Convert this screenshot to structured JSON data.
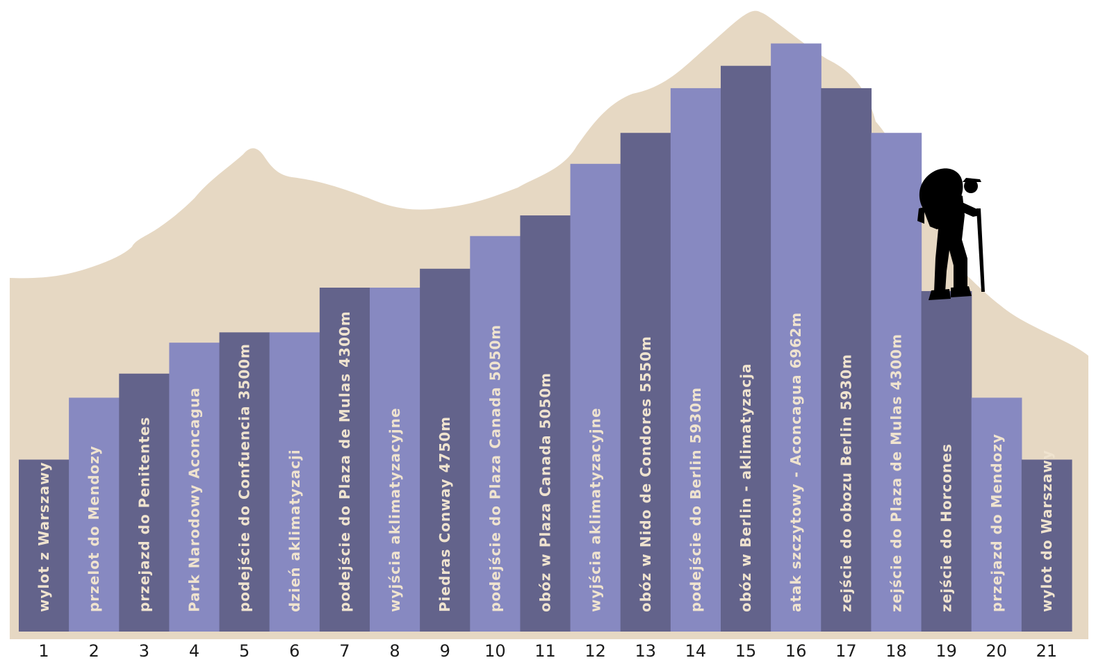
{
  "chart_data": {
    "type": "bar",
    "categories": [
      "1",
      "2",
      "3",
      "4",
      "5",
      "6",
      "7",
      "8",
      "9",
      "10",
      "11",
      "12",
      "13",
      "14",
      "15",
      "16",
      "17",
      "18",
      "19",
      "20",
      "21"
    ],
    "labels": [
      "wylot z Warszawy",
      "przelot do Mendozy",
      "przejazd do Penitentes",
      "Park Narodowy Aconcagua",
      "podejście do Confuencia 3500m",
      "dzień aklimatyzacji",
      "podejście do Plaza de Mulas 4300m",
      "wyjścia aklimatyzacyjne",
      "Piedras Conway 4750m",
      "podejście do Plaza Canada 5050m",
      "obóz w Plaza Canada 5050m",
      "wyjścia aklimatyzacyjne",
      "obóz w Nido de Condores 5550m",
      "podejście do Berlin 5930m",
      "obóz w Berlin - aklimatyzacja",
      "atak szczytowy - Aconcagua 6962m",
      "zejście do obozu Berlin 5930m",
      "zejście do Plaza de Mulas 4300m",
      "zejście do Horcones",
      "przejazd do Mendozy",
      "wylot do Warszawy"
    ],
    "values": [
      1.0,
      1.36,
      1.5,
      1.68,
      1.74,
      1.74,
      2.0,
      2.0,
      2.11,
      2.3,
      2.42,
      2.72,
      2.9,
      3.16,
      3.29,
      3.42,
      3.16,
      2.9,
      1.98,
      1.36,
      1.0
    ],
    "ylim": [
      0,
      3.6
    ],
    "grid": false,
    "legend": "none",
    "title": "",
    "xlabel": "",
    "ylabel": ""
  },
  "colors": {
    "dark_bar": "#63638b",
    "light_bar": "#8789c1",
    "mountain": "#e6d8c3",
    "label_text": "#efe3cf",
    "tick_text": "#1b1b1b",
    "hiker": "#000000"
  },
  "icons": {
    "hiker": "hiker-silhouette-icon"
  }
}
